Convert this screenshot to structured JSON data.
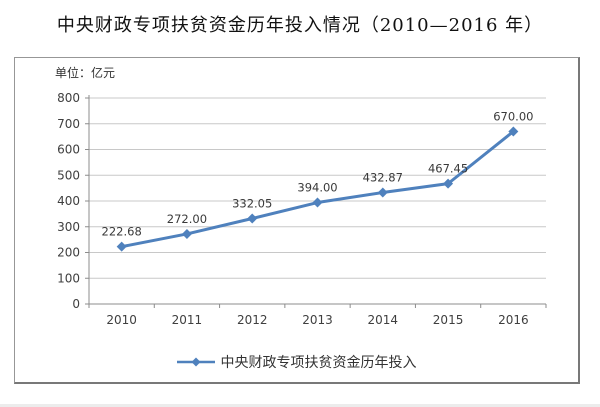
{
  "title": "中央财政专项扶贫资金历年投入情况（2010—2016 年）",
  "unit_label": "单位：亿元",
  "legend_label": "中央财政专项扶贫资金历年投入",
  "colors": {
    "line": "#4F81BD",
    "grid": "#C8C8C8",
    "axis": "#8C8C8C",
    "text": "#3F3F3F"
  },
  "chart_data": {
    "type": "line",
    "title": "中央财政专项扶贫资金历年投入情况（2010—2016 年）",
    "ylabel": "单位：亿元",
    "categories": [
      "2010",
      "2011",
      "2012",
      "2013",
      "2014",
      "2015",
      "2016"
    ],
    "series": [
      {
        "name": "中央财政专项扶贫资金历年投入",
        "values": [
          222.68,
          272.0,
          332.05,
          394.0,
          432.87,
          467.45,
          670.0
        ]
      }
    ],
    "data_labels": [
      "222.68",
      "272.00",
      "332.05",
      "394.00",
      "432.87",
      "467.45",
      "670.00"
    ],
    "ylim": [
      0,
      800
    ],
    "ytick_step": 100,
    "grid": true,
    "marker": "diamond",
    "legend_position": "bottom"
  }
}
